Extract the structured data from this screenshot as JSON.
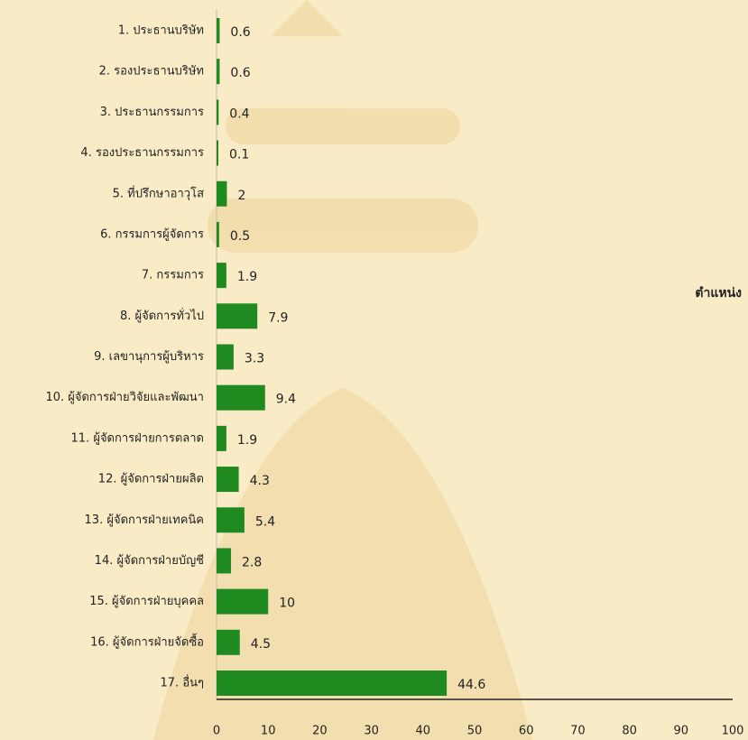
{
  "chart_data": {
    "type": "bar",
    "orientation": "horizontal",
    "categories": [
      "1. ประธานบริษัท",
      "2. รองประธานบริษัท",
      "3. ประธานกรรมการ",
      "4. รองประธานกรรมการ",
      "5. ที่ปรึกษาอาวุโส",
      "6. กรรมการผู้จัดการ",
      "7. กรรมการ",
      "8. ผู้จัดการทั่วไป",
      "9. เลขานุการผู้บริหาร",
      "10. ผู้จัดการฝ่ายวิจัยและพัฒนา",
      "11. ผู้จัดการฝ่ายการตลาด",
      "12. ผู้จัดการฝ่ายผลิต",
      "13. ผู้จัดการฝ่ายเทคนิค",
      "14. ผู้จัดการฝ่ายบัญชี",
      "15. ผู้จัดการฝ่ายบุคคล",
      "16. ผู้จัดการฝ่ายจัดซื้อ",
      "17. อื่นๆ"
    ],
    "series": [
      {
        "name": "ตำแหน่ง",
        "color": "#1f8a1f",
        "values": [
          0.6,
          0.6,
          0.4,
          0.1,
          2,
          0.5,
          1.9,
          7.9,
          3.3,
          9.4,
          1.9,
          4.3,
          5.4,
          2.8,
          10,
          4.5,
          44.6
        ]
      }
    ],
    "xlim": [
      0,
      100
    ],
    "xticks": [
      0,
      10,
      20,
      30,
      40,
      50,
      60,
      70,
      80,
      90,
      100
    ],
    "legend": "right"
  }
}
